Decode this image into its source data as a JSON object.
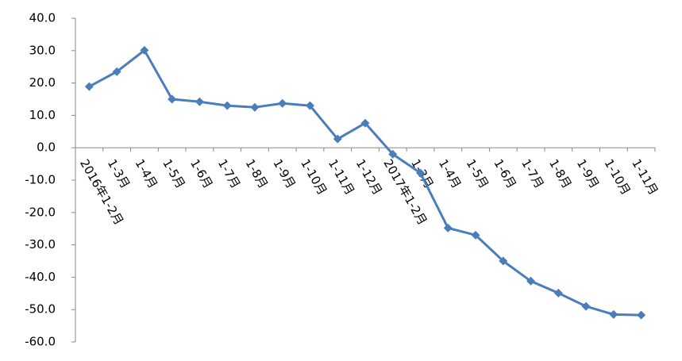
{
  "chart_data": {
    "type": "line",
    "categories": [
      "2016年1-2月",
      "1-3月",
      "1-4月",
      "1-5月",
      "1-6月",
      "1-7月",
      "1-8月",
      "1-9月",
      "1-10月",
      "1-11月",
      "1-12月",
      "2017年1-2月",
      "1-3月",
      "1-4月",
      "1-5月",
      "1-6月",
      "1-7月",
      "1-8月",
      "1-9月",
      "1-10月",
      "1-11月"
    ],
    "series": [
      {
        "color": "#4a7ebb",
        "values": [
          18.9,
          23.5,
          30.1,
          15.0,
          14.2,
          13.0,
          12.5,
          13.7,
          13.0,
          2.7,
          7.6,
          -2.0,
          -7.8,
          -24.8,
          -27.0,
          -35.0,
          -41.2,
          -44.9,
          -49.0,
          -51.5,
          -51.7
        ]
      }
    ],
    "ylim": [
      -60,
      40
    ],
    "yticks": [
      {
        "value": -60,
        "label": "-60.0"
      },
      {
        "value": -50,
        "label": "-50.0"
      },
      {
        "value": -40,
        "label": "-40.0"
      },
      {
        "value": -30,
        "label": "-30.0"
      },
      {
        "value": -20,
        "label": "-20.0"
      },
      {
        "value": -10,
        "label": "-10.0"
      },
      {
        "value": 0,
        "label": "0.0"
      },
      {
        "value": 10,
        "label": "10.0"
      },
      {
        "value": 20,
        "label": "20.0"
      },
      {
        "value": 30,
        "label": "30.0"
      },
      {
        "value": 40,
        "label": "40.0"
      }
    ],
    "grid": false
  }
}
